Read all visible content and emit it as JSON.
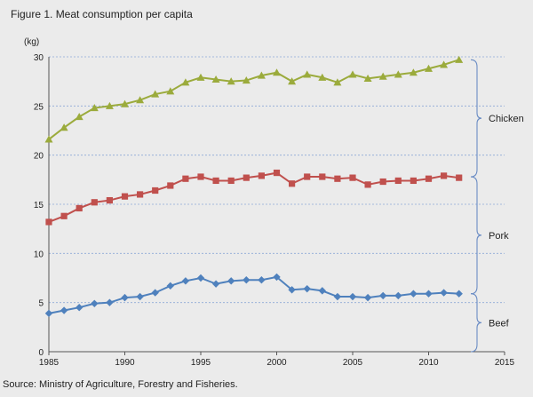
{
  "figure": {
    "title": "Figure 1. Meat consumption per capita",
    "source": "Source: Ministry of Agriculture, Forestry and Fisheries."
  },
  "chart_data": {
    "type": "line",
    "title": "Figure 1. Meat consumption per capita",
    "xlabel": "",
    "ylabel": "(kg)",
    "xlim": [
      1985,
      2015
    ],
    "ylim": [
      0,
      30
    ],
    "x_ticks": [
      1985,
      1990,
      1995,
      2000,
      2005,
      2010,
      2015
    ],
    "y_ticks": [
      0,
      5,
      10,
      15,
      20,
      25,
      30
    ],
    "grid": "horizontal dashed",
    "x": [
      1985,
      1986,
      1987,
      1988,
      1989,
      1990,
      1991,
      1992,
      1993,
      1994,
      1995,
      1996,
      1997,
      1998,
      1999,
      2000,
      2001,
      2002,
      2003,
      2004,
      2005,
      2006,
      2007,
      2008,
      2009,
      2010,
      2011,
      2012
    ],
    "series": [
      {
        "name": "Chicken",
        "color": "#9bab3c",
        "marker": "triangle",
        "values": [
          21.6,
          22.8,
          23.9,
          24.8,
          25.0,
          25.2,
          25.6,
          26.2,
          26.5,
          27.4,
          27.9,
          27.7,
          27.5,
          27.6,
          28.1,
          28.4,
          27.5,
          28.2,
          27.9,
          27.4,
          28.2,
          27.8,
          28.0,
          28.2,
          28.4,
          28.8,
          29.2,
          29.7
        ]
      },
      {
        "name": "Pork",
        "color": "#c0504d",
        "marker": "square",
        "values": [
          13.2,
          13.8,
          14.6,
          15.2,
          15.4,
          15.8,
          16.0,
          16.4,
          16.9,
          17.6,
          17.8,
          17.4,
          17.4,
          17.7,
          17.9,
          18.2,
          17.1,
          17.8,
          17.8,
          17.6,
          17.7,
          17.0,
          17.3,
          17.4,
          17.4,
          17.6,
          17.9,
          17.7
        ]
      },
      {
        "name": "Beef",
        "color": "#4f81bd",
        "marker": "diamond",
        "values": [
          3.9,
          4.2,
          4.5,
          4.9,
          5.0,
          5.5,
          5.6,
          6.0,
          6.7,
          7.2,
          7.5,
          6.9,
          7.2,
          7.3,
          7.3,
          7.6,
          6.3,
          6.4,
          6.2,
          5.6,
          5.6,
          5.5,
          5.7,
          5.7,
          5.9,
          5.9,
          6.0,
          5.9
        ]
      }
    ],
    "annotations": [
      {
        "label": "Chicken",
        "range": [
          17.8,
          29.7
        ]
      },
      {
        "label": "Pork",
        "range": [
          5.9,
          17.8
        ]
      },
      {
        "label": "Beef",
        "range": [
          0,
          5.9
        ]
      }
    ]
  }
}
